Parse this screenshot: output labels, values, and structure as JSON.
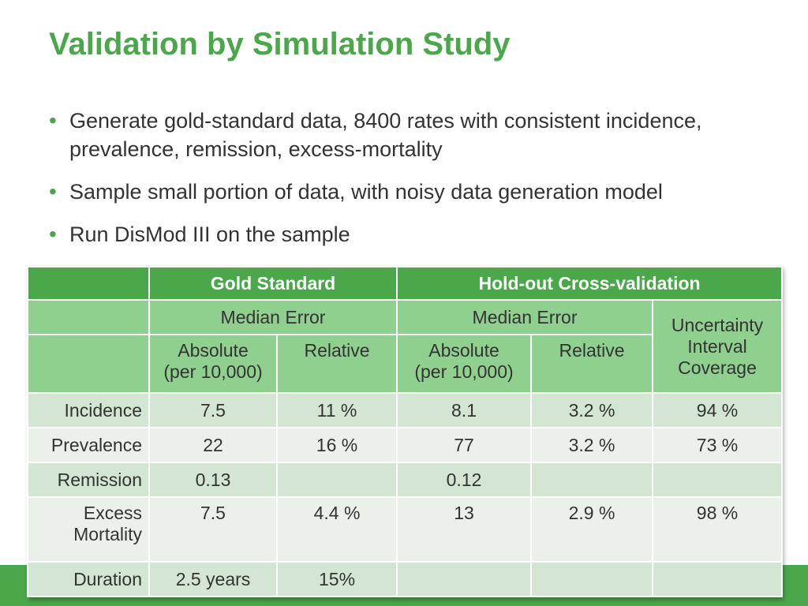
{
  "slide": {
    "title": "Validation by Simulation Study",
    "bullets": [
      "Generate gold-standard data, 8400 rates with consistent incidence, prevalence, remission, excess-mortality",
      "Sample small portion of data, with noisy data generation model",
      "Run DisMod III on the sample"
    ],
    "bullet_glyph": "•"
  },
  "colors": {
    "title": "#4aa84a",
    "header_dark": "#4aa84a",
    "header_light": "#8fd08f",
    "row_dark": "#d3e6d3",
    "row_light": "#e9f1e9"
  },
  "table": {
    "group_headers": [
      "Gold Standard",
      "Hold-out Cross-validation"
    ],
    "sub_headers": [
      "Median Error",
      "Median Error",
      "Uncertainty Interval Coverage"
    ],
    "unit_headers": {
      "gs_absolute": [
        "Absolute",
        "(per 10,000)"
      ],
      "gs_relative": "Relative",
      "cv_absolute": [
        "Absolute",
        "(per 10,000)"
      ],
      "cv_relative": "Relative"
    },
    "rows": [
      {
        "label": "Incidence",
        "cells": [
          "7.5",
          "11 %",
          "8.1",
          "3.2 %",
          "94 %"
        ]
      },
      {
        "label": "Prevalence",
        "cells": [
          "22",
          "16 %",
          "77",
          "3.2 %",
          "73 %"
        ]
      },
      {
        "label": "Remission",
        "cells": [
          "0.13",
          "",
          "0.12",
          "",
          ""
        ]
      },
      {
        "label": [
          "Excess",
          "Mortality"
        ],
        "cells": [
          "7.5",
          "4.4 %",
          "13",
          "2.9 %",
          "98 %"
        ]
      },
      {
        "label": "Duration",
        "cells": [
          "2.5 years",
          "15%",
          "",
          "",
          ""
        ]
      }
    ]
  }
}
